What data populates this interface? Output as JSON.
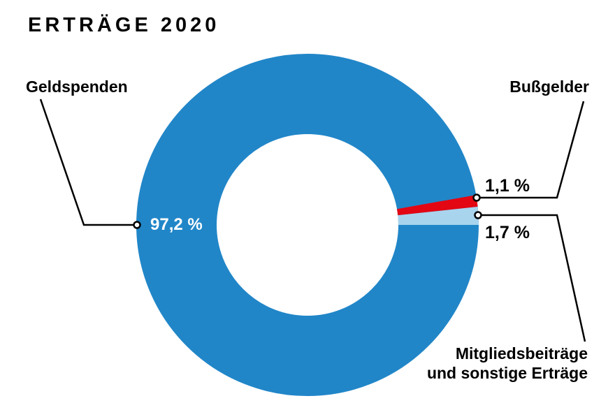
{
  "title": "ERTRÄGE 2020",
  "chart_data": {
    "type": "pie",
    "variant": "donut",
    "title": "ERTRÄGE 2020",
    "unit": "percent",
    "segments": [
      {
        "label": "Geldspenden",
        "value": 97.2,
        "display_value": "97,2 %",
        "color": "#2186c8",
        "value_label_color": "#ffffff"
      },
      {
        "label": "Bußgelder",
        "value": 1.1,
        "display_value": "1,1 %",
        "color": "#e30613",
        "value_label_color": "#000000"
      },
      {
        "label": "Mitgliedsbeiträge und sonstige Erträge",
        "value": 1.7,
        "display_value": "1,7 %",
        "color": "#a9d4ee",
        "value_label_color": "#000000"
      }
    ],
    "layout": {
      "start_angle_deg": 0,
      "direction": "counterclockwise",
      "order_from_start": [
        "Mitgliedsbeiträge und sonstige Erträge",
        "Bußgelder",
        "Geldspenden"
      ],
      "legend": "none",
      "labels": "callout-lines-with-dot-markers"
    }
  },
  "labels": {
    "geldspenden": "Geldspenden",
    "bussgelder": "Bußgelder",
    "mitglieds_line1": "Mitgliedsbeiträge",
    "mitglieds_line2": "und sonstige Erträge",
    "pct_geldspenden": "97,2 %",
    "pct_bussgelder": "1,1 %",
    "pct_mitglieds": "1,7 %"
  },
  "colors": {
    "main_blue": "#2186c8",
    "red": "#e30613",
    "light_blue": "#a9d4ee",
    "leader_line": "#000000",
    "marker_fill": "#ffffff",
    "background": "#ffffff",
    "text": "#000000"
  }
}
